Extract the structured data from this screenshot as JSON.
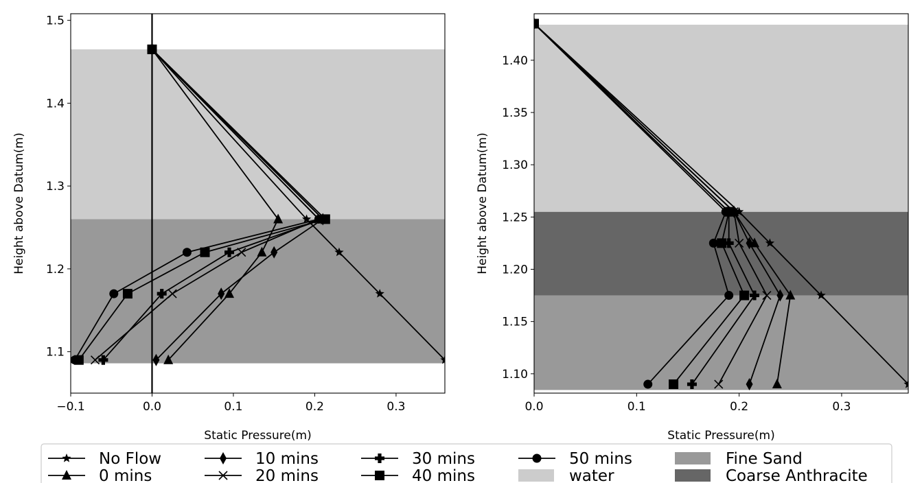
{
  "colors": {
    "water": "#cccccc",
    "fine_sand": "#999999",
    "coarse_anthracite": "#666666",
    "line": "#000000"
  },
  "legend": {
    "position": "bottom-center, outside",
    "items": [
      {
        "label": "No Flow",
        "kind": "line",
        "marker": "star"
      },
      {
        "label": "0 mins",
        "kind": "line",
        "marker": "triangle"
      },
      {
        "label": "10 mins",
        "kind": "line",
        "marker": "thin-diamond"
      },
      {
        "label": "20 mins",
        "kind": "line",
        "marker": "x"
      },
      {
        "label": "30 mins",
        "kind": "line",
        "marker": "plus-filled"
      },
      {
        "label": "40 mins",
        "kind": "line",
        "marker": "square"
      },
      {
        "label": "50 mins",
        "kind": "line",
        "marker": "circle"
      },
      {
        "label": "water",
        "kind": "patch",
        "color": "#cccccc"
      },
      {
        "label": "Fine Sand",
        "kind": "patch",
        "color": "#999999"
      },
      {
        "label": "Coarse Anthracite",
        "kind": "patch",
        "color": "#666666"
      }
    ]
  },
  "chart_data": [
    {
      "type": "line",
      "xlabel": "Static Pressure(m)",
      "ylabel": "Height above Datum(m)",
      "xlim": [
        -0.1,
        0.36
      ],
      "ylim": [
        1.05,
        1.508
      ],
      "xticks": [
        -0.1,
        0.0,
        0.1,
        0.2,
        0.3
      ],
      "xtick_labels": [
        "−0.1",
        "0.0",
        "0.1",
        "0.2",
        "0.3"
      ],
      "yticks": [
        1.1,
        1.2,
        1.3,
        1.4,
        1.5
      ],
      "ytick_labels": [
        "1.1",
        "1.2",
        "1.3",
        "1.4",
        "1.5"
      ],
      "vertical_line_x": 0.0,
      "regions": [
        {
          "label": "Fine Sand",
          "y0": 1.086,
          "y1": 1.26,
          "color": "#999999"
        },
        {
          "label": "water",
          "y0": 1.26,
          "y1": 1.465,
          "color": "#cccccc"
        }
      ],
      "series": [
        {
          "name": "No Flow",
          "marker": "star",
          "points": [
            [
              0.0,
              1.465
            ],
            [
              0.19,
              1.26
            ],
            [
              0.23,
              1.22
            ],
            [
              0.28,
              1.17
            ],
            [
              0.36,
              1.09
            ]
          ]
        },
        {
          "name": "0 mins",
          "marker": "triangle",
          "points": [
            [
              0.0,
              1.465
            ],
            [
              0.155,
              1.26
            ],
            [
              0.135,
              1.22
            ],
            [
              0.095,
              1.17
            ],
            [
              0.02,
              1.09
            ]
          ]
        },
        {
          "name": "10 mins",
          "marker": "thin-diamond",
          "points": [
            [
              0.0,
              1.465
            ],
            [
              0.21,
              1.26
            ],
            [
              0.15,
              1.22
            ],
            [
              0.085,
              1.17
            ],
            [
              0.005,
              1.09
            ]
          ]
        },
        {
          "name": "20 mins",
          "marker": "x",
          "points": [
            [
              0.0,
              1.465
            ],
            [
              0.205,
              1.26
            ],
            [
              0.11,
              1.22
            ],
            [
              0.025,
              1.17
            ],
            [
              -0.07,
              1.09
            ]
          ]
        },
        {
          "name": "30 mins",
          "marker": "plus-filled",
          "points": [
            [
              0.0,
              1.465
            ],
            [
              0.21,
              1.26
            ],
            [
              0.095,
              1.22
            ],
            [
              0.012,
              1.17
            ],
            [
              -0.06,
              1.09
            ]
          ]
        },
        {
          "name": "40 mins",
          "marker": "square",
          "points": [
            [
              0.0,
              1.465
            ],
            [
              0.213,
              1.26
            ],
            [
              0.065,
              1.22
            ],
            [
              -0.03,
              1.17
            ],
            [
              -0.09,
              1.09
            ]
          ]
        },
        {
          "name": "50 mins",
          "marker": "circle",
          "points": [
            [
              0.0,
              1.465
            ],
            [
              0.205,
              1.26
            ],
            [
              0.043,
              1.22
            ],
            [
              -0.047,
              1.17
            ],
            [
              -0.095,
              1.09
            ]
          ]
        }
      ]
    },
    {
      "type": "line",
      "xlabel": "Static Pressure(m)",
      "ylabel": "Height above Datum(m)",
      "xlim": [
        0.0,
        0.365
      ],
      "ylim": [
        1.0815,
        1.4445
      ],
      "xticks": [
        0.0,
        0.1,
        0.2,
        0.3
      ],
      "xtick_labels": [
        "0.0",
        "0.1",
        "0.2",
        "0.3"
      ],
      "yticks": [
        1.1,
        1.15,
        1.2,
        1.25,
        1.3,
        1.35,
        1.4
      ],
      "ytick_labels": [
        "1.10",
        "1.15",
        "1.20",
        "1.25",
        "1.30",
        "1.35",
        "1.40"
      ],
      "regions": [
        {
          "label": "Fine Sand",
          "y0": 1.0845,
          "y1": 1.175,
          "color": "#999999"
        },
        {
          "label": "Coarse Anthracite",
          "y0": 1.175,
          "y1": 1.255,
          "color": "#666666"
        },
        {
          "label": "water",
          "y0": 1.255,
          "y1": 1.434,
          "color": "#cccccc"
        }
      ],
      "series": [
        {
          "name": "No Flow",
          "marker": "star",
          "points": [
            [
              0.0,
              1.435
            ],
            [
              0.2,
              1.255
            ],
            [
              0.23,
              1.225
            ],
            [
              0.28,
              1.175
            ],
            [
              0.365,
              1.09
            ]
          ]
        },
        {
          "name": "0 mins",
          "marker": "triangle",
          "points": [
            [
              0.0,
              1.435
            ],
            [
              0.195,
              1.255
            ],
            [
              0.215,
              1.225
            ],
            [
              0.25,
              1.175
            ],
            [
              0.237,
              1.09
            ]
          ]
        },
        {
          "name": "10 mins",
          "marker": "thin-diamond",
          "points": [
            [
              0.0,
              1.435
            ],
            [
              0.195,
              1.255
            ],
            [
              0.21,
              1.225
            ],
            [
              0.24,
              1.175
            ],
            [
              0.21,
              1.09
            ]
          ]
        },
        {
          "name": "20 mins",
          "marker": "x",
          "points": [
            [
              0.0,
              1.435
            ],
            [
              0.195,
              1.255
            ],
            [
              0.2,
              1.225
            ],
            [
              0.227,
              1.175
            ],
            [
              0.18,
              1.09
            ]
          ]
        },
        {
          "name": "30 mins",
          "marker": "plus-filled",
          "points": [
            [
              0.0,
              1.435
            ],
            [
              0.19,
              1.255
            ],
            [
              0.19,
              1.225
            ],
            [
              0.215,
              1.175
            ],
            [
              0.154,
              1.09
            ]
          ]
        },
        {
          "name": "40 mins",
          "marker": "square",
          "points": [
            [
              0.0,
              1.435
            ],
            [
              0.19,
              1.255
            ],
            [
              0.183,
              1.225
            ],
            [
              0.205,
              1.175
            ],
            [
              0.136,
              1.09
            ]
          ]
        },
        {
          "name": "50 mins",
          "marker": "circle",
          "points": [
            [
              0.0,
              1.435
            ],
            [
              0.187,
              1.255
            ],
            [
              0.175,
              1.225
            ],
            [
              0.19,
              1.175
            ],
            [
              0.111,
              1.09
            ]
          ]
        }
      ]
    }
  ]
}
